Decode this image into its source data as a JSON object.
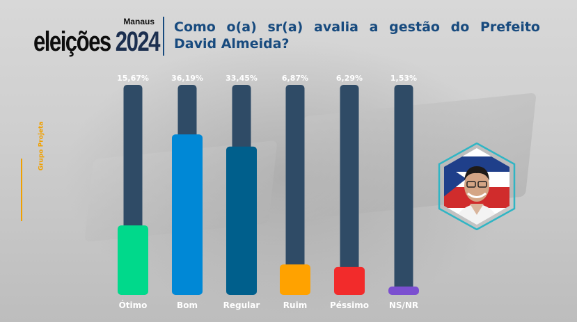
{
  "header": {
    "logo_city": "Manaus",
    "logo_word": "eleições",
    "logo_year": "2024",
    "question": "Como o(a) sr(a) avalia a gestão do Prefeito David Almeida?"
  },
  "source_label": "Grupo Projeta",
  "chart_data": {
    "type": "bar",
    "categories": [
      "Ótimo",
      "Bom",
      "Regular",
      "Ruim",
      "Péssimo",
      "NS/NR"
    ],
    "values": [
      15.67,
      36.19,
      33.45,
      6.87,
      6.29,
      1.53
    ],
    "value_labels": [
      "15,67%",
      "36,19%",
      "33,45%",
      "6,87%",
      "6,29%",
      "1,53%"
    ],
    "colors": [
      "#00d98b",
      "#0088d6",
      "#005f8c",
      "#ffa200",
      "#f22b2b",
      "#7b4fd0"
    ],
    "track_color": "#2f4b66",
    "ylim": [
      0,
      40
    ],
    "grid": false
  },
  "photo": {
    "subject": "candidate-portrait",
    "ring_color": "#30b5c4"
  }
}
